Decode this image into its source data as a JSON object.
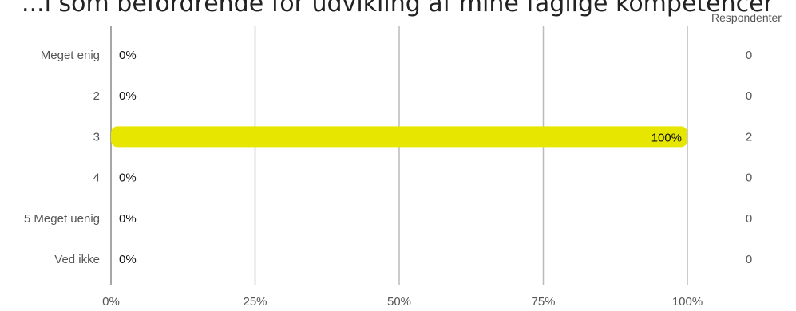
{
  "chart_data": {
    "type": "bar",
    "orientation": "horizontal",
    "title": "...i som befordrende for udvikling af mine faglige kompetencer",
    "categories": [
      "Meget enig",
      "2",
      "3",
      "4",
      "5 Meget uenig",
      "Ved ikke"
    ],
    "values": [
      0,
      0,
      100,
      0,
      0,
      0
    ],
    "value_labels": [
      "0%",
      "0%",
      "100%",
      "0%",
      "0%",
      "0%"
    ],
    "respondents_header": "Respondenter",
    "respondents": [
      0,
      0,
      2,
      0,
      0,
      0
    ],
    "xlim": [
      0,
      100
    ],
    "x_ticks": [
      "0%",
      "25%",
      "50%",
      "75%",
      "100%"
    ],
    "grid": true,
    "bar_color": "#e6e600",
    "grid_color": "#bbbbbb",
    "axis_color": "#888888"
  }
}
